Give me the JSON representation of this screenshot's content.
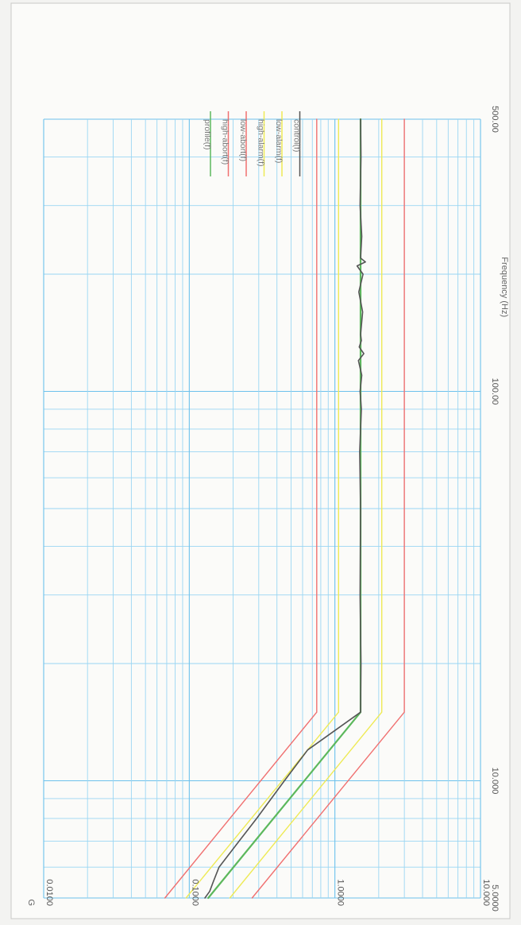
{
  "chart_data": {
    "type": "line",
    "xlabel": "Frequency (Hz)",
    "ylabel": "G",
    "x_scale": "log",
    "y_scale": "log",
    "xlim": [
      5,
      500
    ],
    "ylim": [
      0.01,
      10
    ],
    "x_ticks": [
      {
        "value": 5,
        "label": "5.0000"
      },
      {
        "value": 10,
        "label": "10.000"
      },
      {
        "value": 100,
        "label": "100.00"
      },
      {
        "value": 500,
        "label": "500.00"
      }
    ],
    "y_ticks": [
      {
        "value": 0.01,
        "label": "0.0100"
      },
      {
        "value": 0.1,
        "label": "0.1000"
      },
      {
        "value": 1,
        "label": "1.0000"
      },
      {
        "value": 10,
        "label": "10.000"
      }
    ],
    "grid": true,
    "legend_position": "right",
    "series": [
      {
        "name": "profile(f)",
        "color": "#5cb85c",
        "x": [
          5,
          15,
          500
        ],
        "y": [
          0.135,
          1.5,
          1.5
        ]
      },
      {
        "name": "high-abort(f)",
        "color": "#f07070",
        "x": [
          5,
          15,
          500
        ],
        "y": [
          0.27,
          3.0,
          3.0
        ]
      },
      {
        "name": "low-abort(f)",
        "color": "#f07070",
        "x": [
          5,
          15,
          500
        ],
        "y": [
          0.068,
          0.75,
          0.75
        ]
      },
      {
        "name": "high-alarm(f)",
        "color": "#eeea55",
        "x": [
          5,
          15,
          500
        ],
        "y": [
          0.19,
          2.1,
          2.1
        ]
      },
      {
        "name": "low-alarm(f)",
        "color": "#eeea55",
        "x": [
          5,
          15,
          500
        ],
        "y": [
          0.095,
          1.06,
          1.06
        ]
      },
      {
        "name": "control(f)",
        "color": "#555555",
        "x": [
          5,
          5.2,
          5.5,
          6,
          7,
          8,
          10,
          12,
          15,
          20,
          30,
          50,
          70,
          90,
          100,
          110,
          120,
          125,
          130,
          135,
          140,
          160,
          180,
          200,
          210,
          215,
          220,
          250,
          300,
          400,
          500
        ],
        "y": [
          0.128,
          0.138,
          0.146,
          0.16,
          0.22,
          0.29,
          0.45,
          0.65,
          1.5,
          1.51,
          1.49,
          1.5,
          1.48,
          1.52,
          1.49,
          1.53,
          1.45,
          1.58,
          1.47,
          1.52,
          1.5,
          1.55,
          1.46,
          1.56,
          1.42,
          1.62,
          1.5,
          1.53,
          1.49,
          1.51,
          1.5
        ]
      }
    ]
  }
}
